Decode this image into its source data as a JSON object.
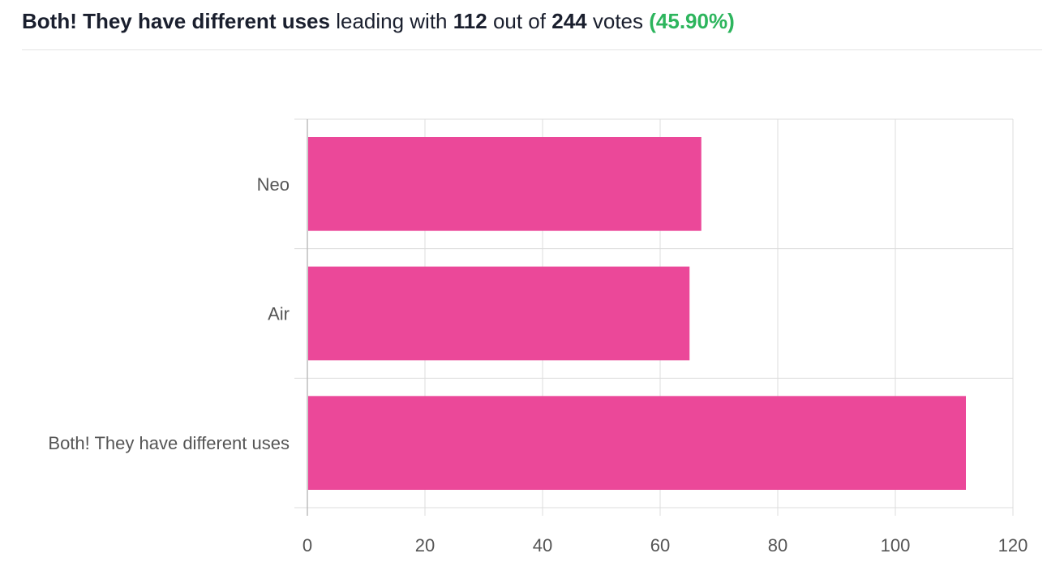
{
  "summary": {
    "leader": "Both! They have different uses",
    "leading_with": "leading with",
    "leader_votes": "112",
    "out_of": "out of",
    "total_votes": "244",
    "votes_word": "votes",
    "percent": "(45.90%)"
  },
  "colors": {
    "bar": "#eb4899",
    "grid": "#dcdcdc",
    "percent": "#2db55d"
  },
  "chart_data": {
    "type": "bar",
    "orientation": "horizontal",
    "categories": [
      "Neo",
      "Air",
      "Both! They have different uses"
    ],
    "values": [
      67,
      65,
      112
    ],
    "xlim": [
      0,
      120
    ],
    "xticks": [
      0,
      20,
      40,
      60,
      80,
      100,
      120
    ],
    "grid": true,
    "title": "",
    "xlabel": "",
    "ylabel": ""
  }
}
